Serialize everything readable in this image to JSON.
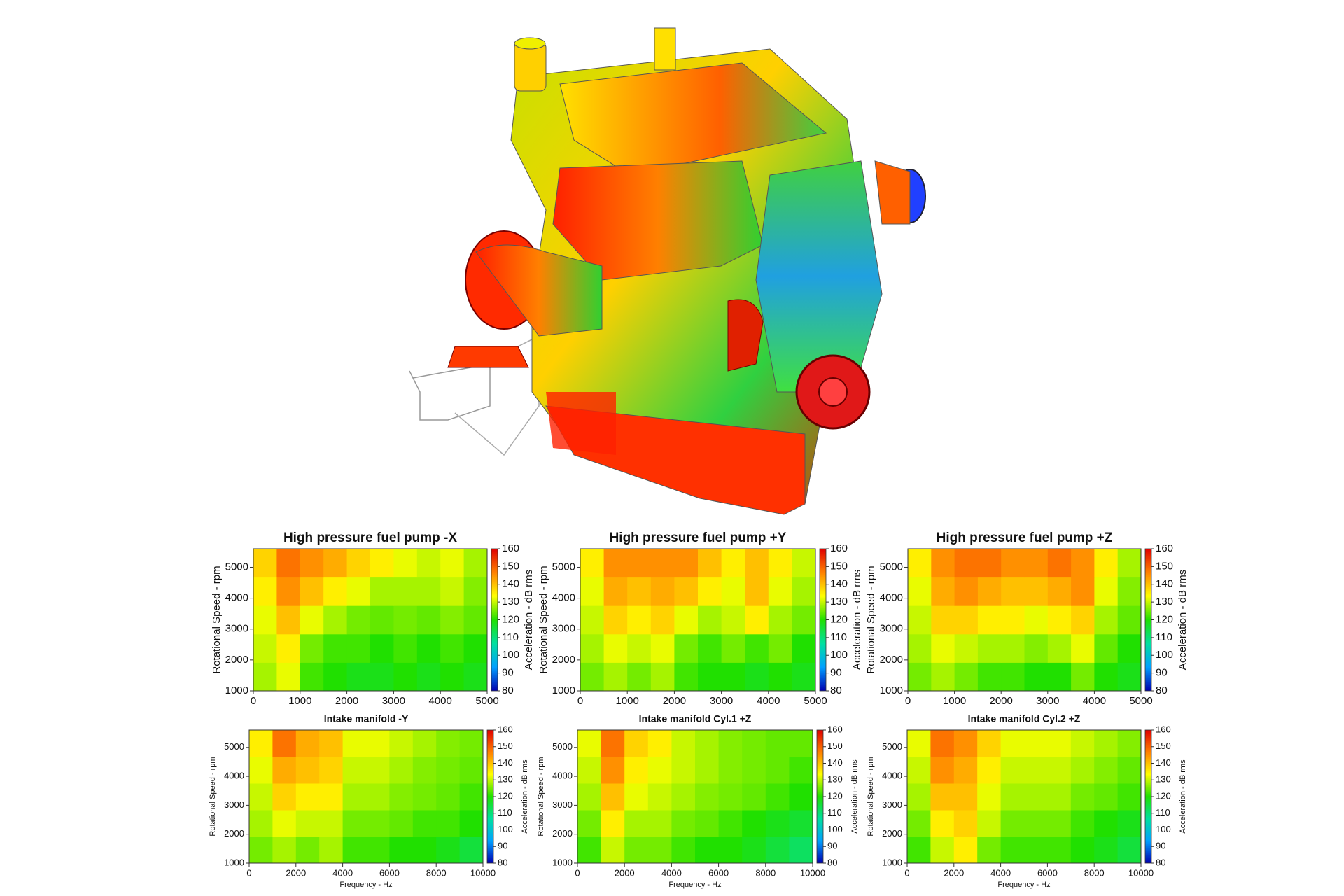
{
  "chart_data": [
    {
      "type": "heatmap",
      "title": "High pressure fuel pump -X",
      "ylabel": "Rotational Speed - rpm",
      "clabel": "Acceleration - dB rms",
      "xlim": [
        0,
        5000
      ],
      "xticks": [
        0,
        1000,
        2000,
        3000,
        4000,
        5000
      ],
      "ylim": [
        1000,
        5600
      ],
      "yticks": [
        1000,
        2000,
        3000,
        4000,
        5000
      ],
      "clim": [
        80,
        160
      ],
      "cticks": [
        80,
        90,
        100,
        110,
        120,
        130,
        140,
        150,
        160
      ],
      "colormap": [
        "#0000b0",
        "#00a0ff",
        "#00e0a0",
        "#20e000",
        "#ffff00",
        "#ff8000",
        "#e00000"
      ],
      "x": [
        250,
        750,
        1250,
        1750,
        2250,
        2750,
        3250,
        3750,
        4250,
        4750
      ],
      "y": [
        1460,
        2380,
        3300,
        4220,
        5140
      ],
      "values": [
        [
          128,
          132,
          122,
          120,
          118,
          118,
          120,
          118,
          120,
          118
        ],
        [
          130,
          135,
          125,
          122,
          122,
          120,
          122,
          120,
          122,
          120
        ],
        [
          132,
          140,
          132,
          128,
          125,
          124,
          125,
          124,
          126,
          124
        ],
        [
          135,
          145,
          140,
          135,
          132,
          128,
          128,
          128,
          130,
          126
        ],
        [
          138,
          148,
          145,
          142,
          138,
          135,
          132,
          130,
          132,
          128
        ]
      ]
    },
    {
      "type": "heatmap",
      "title": "High pressure fuel pump +Y",
      "ylabel": "Rotational Speed - rpm",
      "clabel": "Acceleration - dB rms",
      "xlim": [
        0,
        5000
      ],
      "xticks": [
        0,
        1000,
        2000,
        3000,
        4000,
        5000
      ],
      "ylim": [
        1000,
        5600
      ],
      "yticks": [
        1000,
        2000,
        3000,
        4000,
        5000
      ],
      "clim": [
        80,
        160
      ],
      "cticks": [
        80,
        90,
        100,
        110,
        120,
        130,
        140,
        150,
        160
      ],
      "colormap": [
        "#0000b0",
        "#00a0ff",
        "#00e0a0",
        "#20e000",
        "#ffff00",
        "#ff8000",
        "#e00000"
      ],
      "x": [
        250,
        750,
        1250,
        1750,
        2250,
        2750,
        3250,
        3750,
        4250,
        4750
      ],
      "y": [
        1460,
        2380,
        3300,
        4220,
        5140
      ],
      "values": [
        [
          125,
          128,
          125,
          128,
          122,
          120,
          120,
          118,
          120,
          118
        ],
        [
          128,
          132,
          130,
          132,
          125,
          122,
          125,
          122,
          125,
          120
        ],
        [
          130,
          138,
          135,
          138,
          132,
          128,
          130,
          135,
          128,
          125
        ],
        [
          132,
          142,
          140,
          142,
          140,
          135,
          132,
          140,
          132,
          128
        ],
        [
          135,
          145,
          145,
          145,
          145,
          140,
          135,
          140,
          135,
          130
        ]
      ]
    },
    {
      "type": "heatmap",
      "title": "High pressure fuel pump +Z",
      "ylabel": "Rotational Speed - rpm",
      "clabel": "Acceleration - dB rms",
      "xlim": [
        0,
        5000
      ],
      "xticks": [
        0,
        1000,
        2000,
        3000,
        4000,
        5000
      ],
      "ylim": [
        1000,
        5600
      ],
      "yticks": [
        1000,
        2000,
        3000,
        4000,
        5000
      ],
      "clim": [
        80,
        160
      ],
      "cticks": [
        80,
        90,
        100,
        110,
        120,
        130,
        140,
        150,
        160
      ],
      "colormap": [
        "#0000b0",
        "#00a0ff",
        "#00e0a0",
        "#20e000",
        "#ffff00",
        "#ff8000",
        "#e00000"
      ],
      "x": [
        250,
        750,
        1250,
        1750,
        2250,
        2750,
        3250,
        3750,
        4250,
        4750
      ],
      "y": [
        1460,
        2380,
        3300,
        4220,
        5140
      ],
      "values": [
        [
          125,
          128,
          125,
          122,
          122,
          120,
          120,
          125,
          120,
          118
        ],
        [
          128,
          132,
          130,
          128,
          128,
          126,
          128,
          132,
          124,
          120
        ],
        [
          130,
          138,
          138,
          135,
          135,
          132,
          135,
          138,
          128,
          124
        ],
        [
          132,
          142,
          145,
          142,
          140,
          140,
          142,
          145,
          132,
          126
        ],
        [
          135,
          145,
          148,
          148,
          145,
          145,
          148,
          145,
          135,
          128
        ]
      ]
    },
    {
      "type": "heatmap",
      "title": "Intake manifold -Y",
      "xlabel": "Frequency - Hz",
      "ylabel": "Rotational Speed - rpm",
      "clabel": "Acceleration - dB rms",
      "xlim": [
        0,
        10000
      ],
      "xticks": [
        0,
        2000,
        4000,
        6000,
        8000,
        10000
      ],
      "ylim": [
        1000,
        5600
      ],
      "yticks": [
        1000,
        2000,
        3000,
        4000,
        5000
      ],
      "clim": [
        80,
        160
      ],
      "cticks": [
        80,
        90,
        100,
        110,
        120,
        130,
        140,
        150,
        160
      ],
      "colormap": [
        "#0000b0",
        "#00a0ff",
        "#00e0a0",
        "#20e000",
        "#ffff00",
        "#ff8000",
        "#e00000"
      ],
      "x": [
        500,
        1500,
        2500,
        3500,
        4500,
        5500,
        6500,
        7500,
        8500,
        9500
      ],
      "y": [
        1460,
        2380,
        3300,
        4220,
        5140
      ],
      "values": [
        [
          125,
          128,
          125,
          128,
          122,
          122,
          120,
          120,
          118,
          115
        ],
        [
          128,
          132,
          130,
          130,
          125,
          125,
          124,
          122,
          122,
          120
        ],
        [
          130,
          138,
          135,
          135,
          128,
          128,
          126,
          125,
          124,
          122
        ],
        [
          132,
          142,
          140,
          138,
          130,
          130,
          128,
          126,
          125,
          124
        ],
        [
          135,
          148,
          142,
          140,
          132,
          132,
          130,
          128,
          126,
          125
        ]
      ]
    },
    {
      "type": "heatmap",
      "title": "Intake manifold Cyl.1 +Z",
      "xlabel": "Frequency - Hz",
      "ylabel": "Rotational Speed - rpm",
      "clabel": "Acceleration - dB rms",
      "xlim": [
        0,
        10000
      ],
      "xticks": [
        0,
        2000,
        4000,
        6000,
        8000,
        10000
      ],
      "ylim": [
        1000,
        5600
      ],
      "yticks": [
        1000,
        2000,
        3000,
        4000,
        5000
      ],
      "clim": [
        80,
        160
      ],
      "cticks": [
        80,
        90,
        100,
        110,
        120,
        130,
        140,
        150,
        160
      ],
      "colormap": [
        "#0000b0",
        "#00a0ff",
        "#00e0a0",
        "#20e000",
        "#ffff00",
        "#ff8000",
        "#e00000"
      ],
      "x": [
        500,
        1500,
        2500,
        3500,
        4500,
        5500,
        6500,
        7500,
        8500,
        9500
      ],
      "y": [
        1460,
        2380,
        3300,
        4220,
        5140
      ],
      "values": [
        [
          122,
          130,
          125,
          125,
          122,
          120,
          120,
          118,
          115,
          112
        ],
        [
          125,
          135,
          128,
          128,
          125,
          124,
          122,
          120,
          118,
          116
        ],
        [
          128,
          140,
          132,
          130,
          128,
          126,
          125,
          124,
          122,
          120
        ],
        [
          130,
          145,
          135,
          132,
          130,
          128,
          126,
          125,
          124,
          122
        ],
        [
          132,
          148,
          138,
          135,
          130,
          128,
          126,
          125,
          124,
          124
        ]
      ]
    },
    {
      "type": "heatmap",
      "title": "Intake manifold Cyl.2 +Z",
      "xlabel": "Frequency - Hz",
      "ylabel": "Rotational Speed - rpm",
      "clabel": "Acceleration - dB rms",
      "xlim": [
        0,
        10000
      ],
      "xticks": [
        0,
        2000,
        4000,
        6000,
        8000,
        10000
      ],
      "ylim": [
        1000,
        5600
      ],
      "yticks": [
        1000,
        2000,
        3000,
        4000,
        5000
      ],
      "clim": [
        80,
        160
      ],
      "cticks": [
        80,
        90,
        100,
        110,
        120,
        130,
        140,
        150,
        160
      ],
      "colormap": [
        "#0000b0",
        "#00a0ff",
        "#00e0a0",
        "#20e000",
        "#ffff00",
        "#ff8000",
        "#e00000"
      ],
      "x": [
        500,
        1500,
        2500,
        3500,
        4500,
        5500,
        6500,
        7500,
        8500,
        9500
      ],
      "y": [
        1460,
        2380,
        3300,
        4220,
        5140
      ],
      "values": [
        [
          122,
          130,
          135,
          125,
          122,
          122,
          122,
          120,
          118,
          115
        ],
        [
          125,
          135,
          138,
          130,
          125,
          125,
          125,
          122,
          120,
          118
        ],
        [
          128,
          140,
          140,
          132,
          128,
          128,
          128,
          125,
          124,
          122
        ],
        [
          130,
          145,
          142,
          135,
          130,
          130,
          130,
          128,
          126,
          124
        ],
        [
          132,
          148,
          145,
          138,
          132,
          132,
          132,
          130,
          128,
          126
        ]
      ]
    }
  ]
}
